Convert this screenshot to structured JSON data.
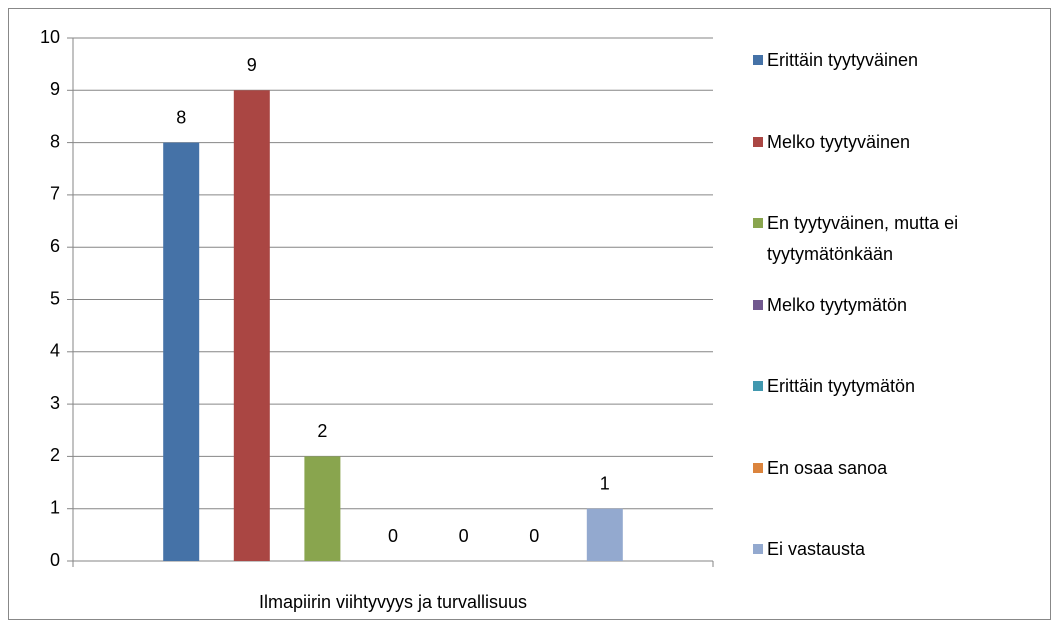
{
  "chart_data": {
    "type": "bar",
    "categories": [
      "Ilmapiirin viihtyvyys ja turvallisuus"
    ],
    "series": [
      {
        "name": "Erittäin tyytyväinen",
        "color": "#4572a7",
        "values": [
          8
        ]
      },
      {
        "name": "Melko tyytyväinen",
        "color": "#aa4643",
        "values": [
          9
        ]
      },
      {
        "name": "En tyytyväinen, mutta ei tyytymätönkään",
        "color": "#89a54e",
        "values": [
          2
        ]
      },
      {
        "name": "Melko tyytymätön",
        "color": "#71588f",
        "values": [
          0
        ]
      },
      {
        "name": "Erittäin tyytymätön",
        "color": "#4198af",
        "values": [
          0
        ]
      },
      {
        "name": "En osaa sanoa",
        "color": "#db843d",
        "values": [
          0
        ]
      },
      {
        "name": "Ei vastausta",
        "color": "#93a9cf",
        "values": [
          1
        ]
      }
    ],
    "ylim": [
      0,
      10
    ],
    "yticks": [
      0,
      1,
      2,
      3,
      4,
      5,
      6,
      7,
      8,
      9,
      10
    ],
    "grid": true,
    "legend": "right"
  }
}
